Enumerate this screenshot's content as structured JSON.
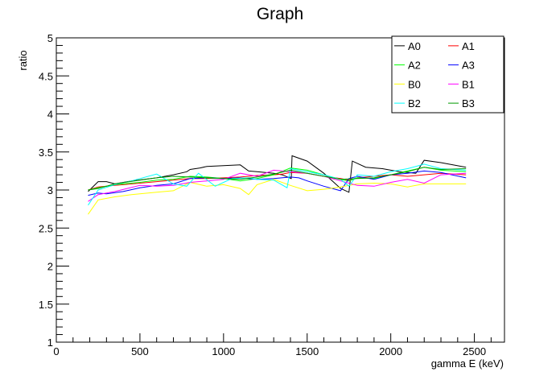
{
  "chart_data": {
    "type": "line",
    "title": "Graph",
    "xlabel": "gamma E (keV)",
    "ylabel": "ratio",
    "xlim": [
      0,
      2680
    ],
    "ylim": [
      1,
      5
    ],
    "x_ticks": [
      0,
      500,
      1000,
      1500,
      2000,
      2500
    ],
    "x_tick_labels": [
      "0",
      "500",
      "1000",
      "1500",
      "2000",
      "2500"
    ],
    "y_ticks": [
      1,
      1.5,
      2,
      2.5,
      3,
      3.5,
      4,
      4.5,
      5
    ],
    "y_tick_labels": [
      "1",
      "1.5",
      "2",
      "2.5",
      "3",
      "3.5",
      "4",
      "4.5",
      "5"
    ],
    "grid": false,
    "legend_position": "top-right",
    "series": [
      {
        "name": "A0",
        "color": "#000000",
        "x": [
          190,
          250,
          300,
          350,
          450,
          600,
          700,
          780,
          800,
          860,
          900,
          1000,
          1100,
          1150,
          1200,
          1300,
          1350,
          1405,
          1410,
          1500,
          1600,
          1700,
          1750,
          1770,
          1850,
          1950,
          2050,
          2150,
          2200,
          2300,
          2450
        ],
        "y": [
          2.98,
          3.11,
          3.11,
          3.08,
          3.12,
          3.16,
          3.2,
          3.24,
          3.27,
          3.29,
          3.31,
          3.32,
          3.33,
          3.25,
          3.24,
          3.22,
          3.2,
          3.15,
          3.45,
          3.38,
          3.22,
          3.02,
          2.97,
          3.38,
          3.3,
          3.28,
          3.24,
          3.22,
          3.39,
          3.36,
          3.3
        ]
      },
      {
        "name": "A1",
        "color": "#ff0000",
        "x": [
          190,
          250,
          350,
          500,
          600,
          800,
          900,
          1000,
          1100,
          1200,
          1300,
          1350,
          1400,
          1500,
          1600,
          1700,
          1750,
          1800,
          1900,
          2000,
          2100,
          2200,
          2300,
          2450
        ],
        "y": [
          3.0,
          3.04,
          3.06,
          3.09,
          3.11,
          3.15,
          3.15,
          3.16,
          3.17,
          3.19,
          3.2,
          3.21,
          3.23,
          3.22,
          3.18,
          3.15,
          3.13,
          3.16,
          3.18,
          3.2,
          3.18,
          3.2,
          3.22,
          3.2
        ]
      },
      {
        "name": "A2",
        "color": "#00ff00",
        "x": [
          190,
          250,
          350,
          500,
          600,
          700,
          800,
          900,
          1000,
          1100,
          1200,
          1300,
          1400,
          1500,
          1600,
          1700,
          1750,
          1800,
          1900,
          2000,
          2100,
          2200,
          2300,
          2450
        ],
        "y": [
          3.0,
          3.03,
          3.07,
          3.1,
          3.13,
          3.14,
          3.18,
          3.17,
          3.15,
          3.12,
          3.15,
          3.2,
          3.29,
          3.26,
          3.2,
          3.14,
          3.12,
          3.16,
          3.15,
          3.2,
          3.25,
          3.3,
          3.26,
          3.24
        ]
      },
      {
        "name": "A3",
        "color": "#0000ff",
        "x": [
          190,
          250,
          300,
          400,
          500,
          600,
          700,
          800,
          900,
          1000,
          1100,
          1200,
          1300,
          1400,
          1450,
          1500,
          1600,
          1700,
          1750,
          1800,
          1900,
          2000,
          2100,
          2200,
          2300,
          2450
        ],
        "y": [
          2.93,
          2.96,
          2.95,
          2.98,
          3.03,
          3.06,
          3.08,
          3.15,
          3.16,
          3.15,
          3.16,
          3.14,
          3.15,
          3.17,
          3.16,
          3.12,
          3.05,
          2.99,
          3.15,
          3.18,
          3.14,
          3.2,
          3.22,
          3.25,
          3.23,
          3.16
        ]
      },
      {
        "name": "B0",
        "color": "#ffff00",
        "x": [
          190,
          250,
          350,
          450,
          600,
          700,
          800,
          900,
          1000,
          1100,
          1150,
          1200,
          1300,
          1400,
          1500,
          1600,
          1700,
          1800,
          1900,
          2000,
          2100,
          2200,
          2300,
          2450
        ],
        "y": [
          2.68,
          2.87,
          2.91,
          2.94,
          2.97,
          2.99,
          3.1,
          3.05,
          3.07,
          3.02,
          2.94,
          3.07,
          3.14,
          3.06,
          2.99,
          3.01,
          3.04,
          3.08,
          3.09,
          3.08,
          3.04,
          3.08,
          3.08,
          3.08
        ]
      },
      {
        "name": "B1",
        "color": "#ff00ff",
        "x": [
          190,
          250,
          350,
          500,
          600,
          700,
          800,
          900,
          1000,
          1100,
          1200,
          1300,
          1400,
          1500,
          1600,
          1700,
          1800,
          1900,
          2000,
          2100,
          2200,
          2300,
          2450
        ],
        "y": [
          2.85,
          2.94,
          2.98,
          3.06,
          3.05,
          3.06,
          3.1,
          3.12,
          3.14,
          3.22,
          3.18,
          3.26,
          3.24,
          3.22,
          3.18,
          3.12,
          3.06,
          3.05,
          3.1,
          3.14,
          3.09,
          3.2,
          3.22
        ]
      },
      {
        "name": "B2",
        "color": "#00ffff",
        "x": [
          190,
          250,
          350,
          450,
          600,
          700,
          780,
          850,
          950,
          1050,
          1150,
          1200,
          1300,
          1380,
          1400,
          1500,
          1600,
          1700,
          1750,
          1800,
          1900,
          2000,
          2100,
          2200,
          2300,
          2450
        ],
        "y": [
          2.8,
          3.0,
          3.07,
          3.12,
          3.21,
          3.08,
          3.05,
          3.22,
          3.05,
          3.15,
          3.16,
          3.14,
          3.13,
          3.03,
          3.28,
          3.24,
          3.2,
          3.14,
          3.05,
          3.2,
          3.18,
          3.24,
          3.28,
          3.34,
          3.28,
          3.26
        ]
      },
      {
        "name": "B3",
        "color": "#009900",
        "x": [
          190,
          250,
          350,
          500,
          600,
          700,
          800,
          900,
          1000,
          1100,
          1200,
          1300,
          1400,
          1500,
          1600,
          1700,
          1800,
          1900,
          2000,
          2100,
          2200,
          2300,
          2450
        ],
        "y": [
          3.0,
          3.02,
          3.08,
          3.13,
          3.16,
          3.18,
          3.17,
          3.16,
          3.15,
          3.14,
          3.17,
          3.21,
          3.26,
          3.22,
          3.18,
          3.14,
          3.15,
          3.16,
          3.2,
          3.24,
          3.3,
          3.27,
          3.28
        ]
      }
    ]
  }
}
